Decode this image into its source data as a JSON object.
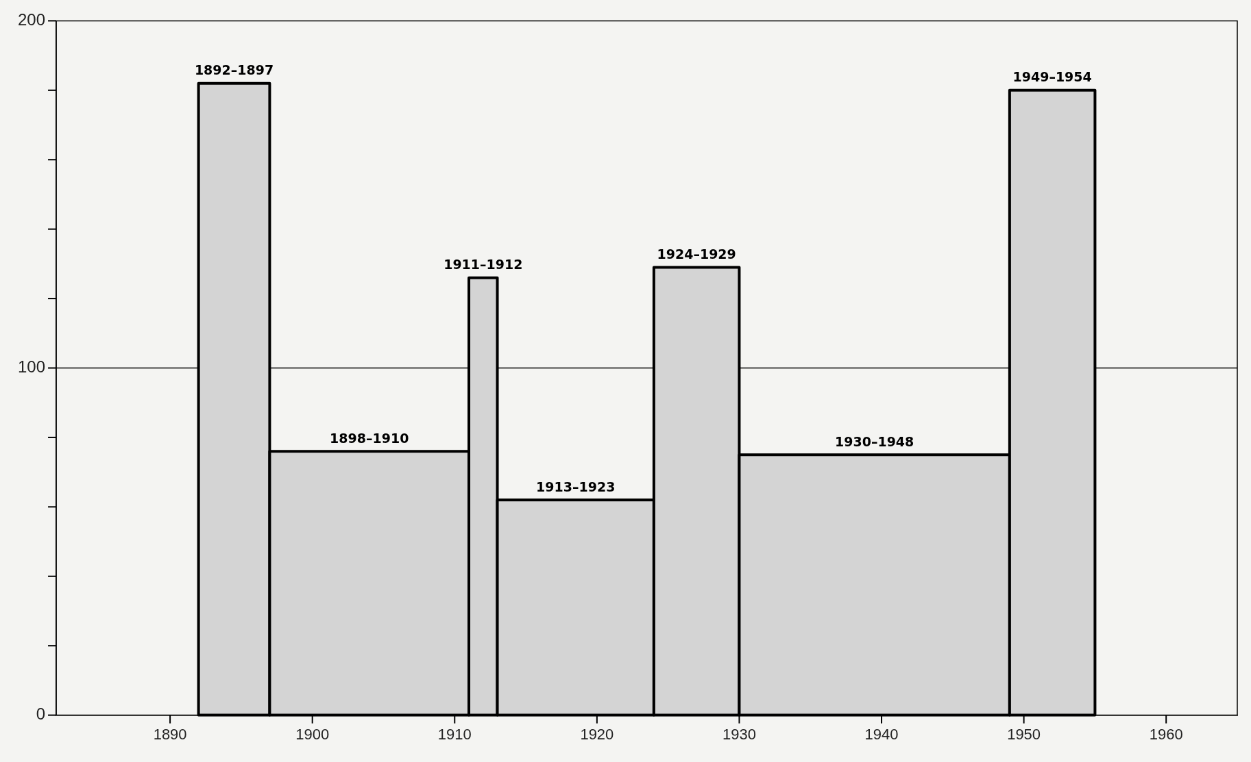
{
  "chart_data": {
    "type": "histogram",
    "bins": [
      1892,
      1897,
      1911,
      1913,
      1924,
      1930,
      1949,
      1955
    ],
    "values": [
      182,
      76,
      126,
      62,
      129,
      75,
      180
    ],
    "color": "#d4d4d4",
    "xlim": [
      1882,
      1965
    ],
    "xticks": [
      1890,
      1900,
      1910,
      1920,
      1930,
      1940,
      1950,
      1960
    ],
    "ylim": [
      0,
      200
    ],
    "yticks": [
      0,
      {
        "value": 20,
        "label": null
      },
      {
        "value": 40,
        "label": null
      },
      {
        "value": 60,
        "label": null
      },
      {
        "value": 80,
        "label": null
      },
      100,
      {
        "value": 120,
        "label": null
      },
      {
        "value": 140,
        "label": null
      },
      {
        "value": 160,
        "label": null
      },
      {
        "value": 180,
        "label": null
      },
      200
    ],
    "grid": false,
    "legend": false,
    "ref_lines": [
      {
        "axis": "y",
        "value": 100,
        "color": "#000000"
      }
    ],
    "annotations": [
      {
        "text": "1892–1897",
        "x": 1894.5,
        "y": 182
      },
      {
        "text": "1898–1910",
        "x": 1904,
        "y": 76
      },
      {
        "text": "1911–1912",
        "x": 1912,
        "y": 126
      },
      {
        "text": "1913–1923",
        "x": 1918.5,
        "y": 62
      },
      {
        "text": "1924–1929",
        "x": 1927,
        "y": 129
      },
      {
        "text": "1930–1948",
        "x": 1939.5,
        "y": 75
      },
      {
        "text": "1949–1954",
        "x": 1952,
        "y": 180
      }
    ]
  }
}
